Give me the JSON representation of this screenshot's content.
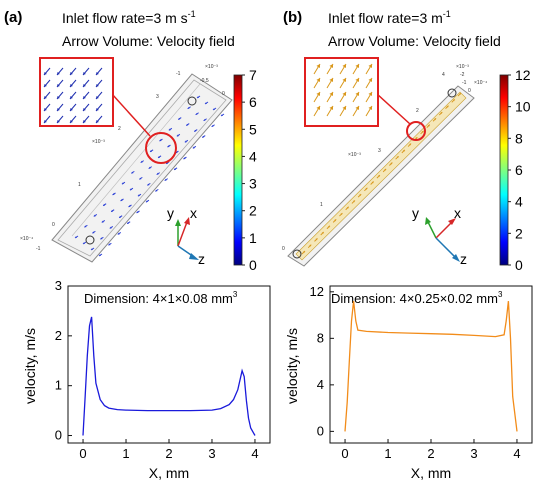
{
  "panels": [
    {
      "letter": "(a)",
      "inlet": "Inlet flow rate=3 m s",
      "inlet_sup": "-1",
      "arrow_volume": "Arrow Volume:  Velocity field",
      "colorbar_ticks": [
        "7",
        "6",
        "5",
        "4",
        "3",
        "2",
        "1",
        "0"
      ],
      "colorbar_max": 7,
      "axes_labels": {
        "y": "y",
        "x": "x",
        "z": "z"
      },
      "model_small_labels": [
        "×10⁻³",
        "-1",
        "-0.5",
        "0",
        "×10⁻³",
        "2",
        "3",
        "1",
        "×10⁻⁴",
        "0",
        "-1"
      ]
    },
    {
      "letter": "(b)",
      "inlet": "Inlet flow rate=3 m",
      "inlet_sup": "-1",
      "arrow_volume": "Arrow Volume:  Velocity field",
      "colorbar_ticks": [
        "12",
        "10",
        "8",
        "6",
        "4",
        "2",
        "0"
      ],
      "colorbar_max": 12,
      "axes_labels": {
        "y": "y",
        "x": "x",
        "z": "z"
      },
      "model_small_labels": [
        "×10⁻³",
        "-2",
        "-1",
        "4",
        "×10⁻⁴",
        "2",
        "0",
        "×10⁻³",
        "3",
        "1",
        "0"
      ]
    }
  ],
  "chart_data": [
    {
      "type": "line",
      "title": "Dimension: 4×1×0.08 mm",
      "title_sup": "3",
      "xlabel": "X, mm",
      "ylabel": "velocity, m/s",
      "xlim": [
        -0.35,
        4.35
      ],
      "ylim": [
        -0.15,
        3.0
      ],
      "xticks": [
        "0",
        "1",
        "2",
        "3",
        "4"
      ],
      "yticks": [
        "0",
        "1",
        "2",
        "3"
      ],
      "color": "#1a1adb",
      "x": [
        0.0,
        0.05,
        0.1,
        0.15,
        0.2,
        0.25,
        0.3,
        0.4,
        0.5,
        0.6,
        0.8,
        1.0,
        1.5,
        2.0,
        2.5,
        3.0,
        3.2,
        3.4,
        3.5,
        3.6,
        3.7,
        3.75,
        3.8,
        3.85,
        3.9,
        4.0
      ],
      "y": [
        0.0,
        0.8,
        1.6,
        2.2,
        2.38,
        1.6,
        1.05,
        0.72,
        0.6,
        0.55,
        0.52,
        0.51,
        0.5,
        0.5,
        0.5,
        0.51,
        0.54,
        0.62,
        0.72,
        0.92,
        1.3,
        1.18,
        0.7,
        0.35,
        0.15,
        0.0
      ]
    },
    {
      "type": "line",
      "title": "Dimension: 4×0.25×0.02 mm",
      "title_sup": "3",
      "xlabel": "X, mm",
      "ylabel": "velocity, m/s",
      "xlim": [
        -0.35,
        4.35
      ],
      "ylim": [
        -1.0,
        12.5
      ],
      "xticks": [
        "0",
        "1",
        "2",
        "3",
        "4"
      ],
      "yticks": [
        "0",
        "4",
        "8",
        "12"
      ],
      "color": "#f28c1a",
      "x": [
        0.0,
        0.05,
        0.1,
        0.15,
        0.2,
        0.25,
        0.3,
        0.5,
        1.0,
        1.5,
        2.0,
        2.5,
        3.0,
        3.5,
        3.7,
        3.75,
        3.8,
        3.85,
        3.9,
        4.0
      ],
      "y": [
        0.0,
        2.5,
        6.0,
        9.5,
        11.2,
        9.5,
        8.7,
        8.6,
        8.5,
        8.45,
        8.4,
        8.35,
        8.25,
        8.15,
        8.3,
        9.5,
        11.2,
        8.0,
        3.0,
        0.0
      ]
    }
  ]
}
